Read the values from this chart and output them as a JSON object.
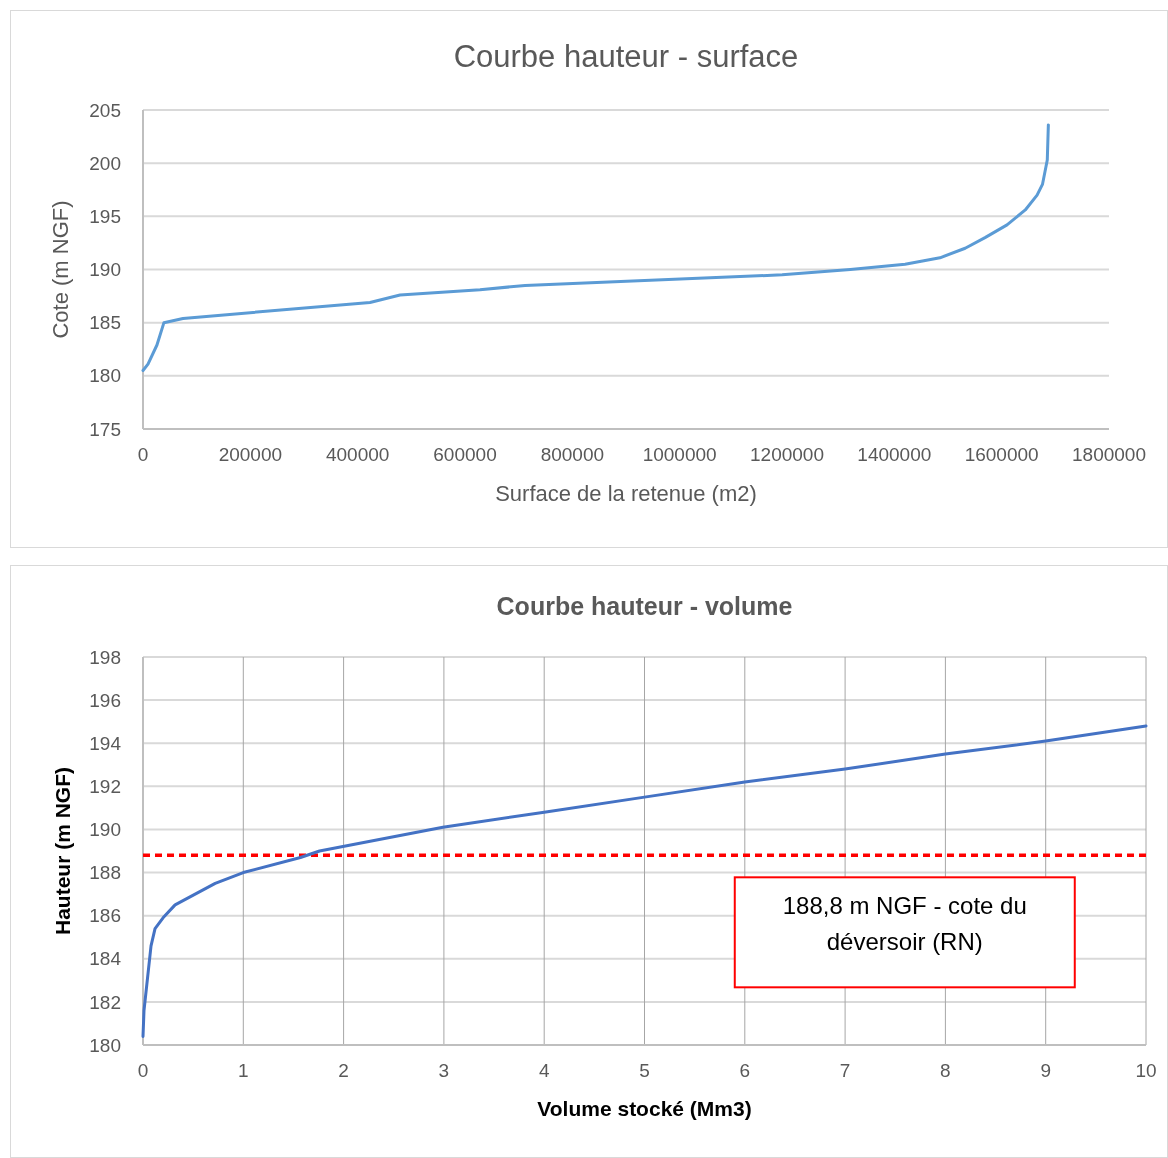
{
  "chart_data": [
    {
      "type": "line",
      "title": "Courbe hauteur - surface",
      "xlabel": "Surface de la retenue (m2)",
      "ylabel": "Cote (m NGF)",
      "xlim": [
        0,
        1800000
      ],
      "xticks": [
        0,
        200000,
        400000,
        600000,
        800000,
        1000000,
        1200000,
        1400000,
        1600000,
        1800000
      ],
      "ylim": [
        175,
        205
      ],
      "yticks": [
        175,
        180,
        185,
        190,
        195,
        200,
        205
      ],
      "grid": "y",
      "marker": "none",
      "series": [
        {
          "color": "#5b9bd5",
          "x": [
            0,
            9300,
            26000,
            39000,
            74500,
            423000,
            479000,
            628000,
            712000,
            1191000,
            1318000,
            1420000,
            1485000,
            1532000,
            1569000,
            1610000,
            1644000,
            1666000,
            1676000,
            1685000,
            1687000
          ],
          "values": [
            180.5,
            181.1,
            182.9,
            185.0,
            185.4,
            186.9,
            187.6,
            188.1,
            188.5,
            189.5,
            190.0,
            190.5,
            191.1,
            192.0,
            193.0,
            194.2,
            195.6,
            197.0,
            198.0,
            200.3,
            203.6
          ]
        }
      ]
    },
    {
      "type": "line",
      "title": "Courbe hauteur - volume",
      "xlabel": "Volume stocké (Mm3)",
      "ylabel": "Hauteur (m NGF)",
      "xlim": [
        0,
        10
      ],
      "xticks": [
        0,
        1,
        2,
        3,
        4,
        5,
        6,
        7,
        8,
        9,
        10
      ],
      "ylim": [
        180,
        198
      ],
      "yticks": [
        180,
        182,
        184,
        186,
        188,
        190,
        192,
        194,
        196,
        198
      ],
      "grid": true,
      "marker": "none",
      "series": [
        {
          "color": "#4472c4",
          "x": [
            0,
            0.01,
            0.08,
            0.12,
            0.2,
            0.32,
            0.72,
            1.0,
            1.57,
            1.76,
            2.99,
            4.0,
            5.0,
            6.0,
            7.0,
            8.0,
            9.0,
            10.0
          ],
          "values": [
            180.4,
            181.6,
            184.6,
            185.4,
            185.9,
            186.5,
            187.5,
            188.0,
            188.7,
            189.0,
            190.1,
            190.8,
            191.5,
            192.2,
            192.8,
            193.5,
            194.1,
            194.8
          ]
        }
      ],
      "ref_lines": [
        {
          "axis": "y",
          "value": 188.8,
          "label": "188,8 m NGF - cote du déversoir (RN)",
          "color": "#ff0000",
          "line_style": "dashed"
        }
      ]
    }
  ]
}
